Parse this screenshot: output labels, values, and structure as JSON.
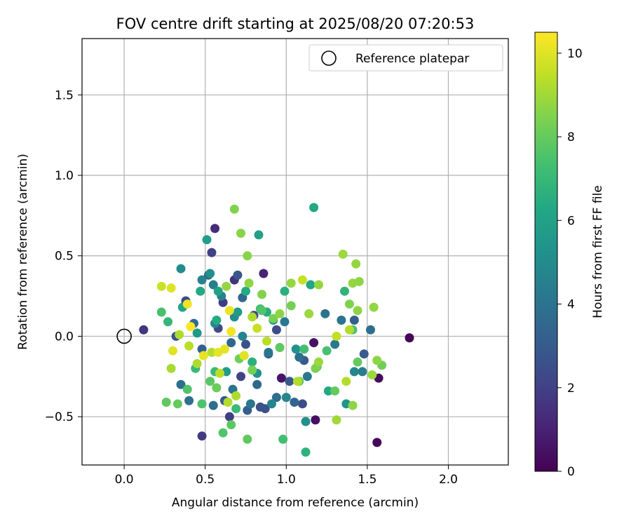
{
  "chart_data": {
    "type": "scatter",
    "title": "FOV centre drift starting at 2025/08/20 07:20:53",
    "xlabel": "Angular distance from reference (arcmin)",
    "ylabel": "Rotation from reference (arcmin)",
    "xlim": [
      -0.26,
      2.37
    ],
    "ylim": [
      -0.8,
      1.85
    ],
    "xticks": [
      0.0,
      0.5,
      1.0,
      1.5,
      2.0
    ],
    "xtick_labels": [
      "0.0",
      "0.5",
      "1.0",
      "1.5",
      "2.0"
    ],
    "yticks": [
      -0.5,
      0.0,
      0.5,
      1.0,
      1.5
    ],
    "ytick_labels": [
      "−0.5",
      "0.0",
      "0.5",
      "1.0",
      "1.5"
    ],
    "grid": true,
    "legend": {
      "placement": "top-right",
      "entries": [
        "Reference platepar"
      ]
    },
    "reference_point": {
      "name": "Reference platepar",
      "x": 0.0,
      "y": 0.0
    },
    "colorbar": {
      "label": "Hours from first FF file",
      "colormap": "viridis",
      "range": [
        0,
        10.5
      ],
      "ticks": [
        0,
        2,
        4,
        6,
        8,
        10
      ],
      "tick_labels": [
        "0",
        "2",
        "4",
        "6",
        "8",
        "10"
      ]
    },
    "series": [
      {
        "points": [
          [
            1.76,
            -0.01,
            0.1
          ],
          [
            1.56,
            -0.66,
            0.2
          ],
          [
            1.57,
            -0.26,
            0.3
          ],
          [
            1.18,
            -0.52,
            0.4
          ],
          [
            1.17,
            -0.04,
            0.5
          ],
          [
            0.97,
            -0.26,
            0.6
          ],
          [
            0.86,
            0.39,
            1.0
          ],
          [
            0.56,
            0.67,
            1.3
          ],
          [
            0.12,
            0.04,
            1.6
          ],
          [
            0.48,
            -0.62,
            1.8
          ],
          [
            0.54,
            0.52,
            2.0
          ],
          [
            0.68,
            0.35,
            1.5
          ],
          [
            0.8,
            0.13,
            2.2
          ],
          [
            0.61,
            0.21,
            1.8
          ],
          [
            0.94,
            0.04,
            2.4
          ],
          [
            0.72,
            -0.25,
            2.1
          ],
          [
            1.1,
            -0.42,
            2.5
          ],
          [
            0.65,
            -0.5,
            1.9
          ],
          [
            0.84,
            -0.44,
            2.6
          ],
          [
            0.38,
            0.22,
            2.3
          ],
          [
            0.32,
            0.0,
            2.6
          ],
          [
            0.58,
            0.05,
            2.2
          ],
          [
            0.75,
            -0.05,
            2.7
          ],
          [
            1.02,
            -0.28,
            2.9
          ],
          [
            1.48,
            -0.11,
            3.0
          ],
          [
            1.11,
            -0.15,
            3.0
          ],
          [
            0.7,
            0.38,
            2.8
          ],
          [
            0.76,
            -0.46,
            3.1
          ],
          [
            0.62,
            -0.4,
            2.9
          ],
          [
            0.89,
            -0.11,
            3.2
          ],
          [
            1.42,
            0.1,
            3.2
          ],
          [
            0.48,
            -0.08,
            3.2
          ],
          [
            0.87,
            -0.45,
            2.7
          ],
          [
            1.05,
            -0.41,
            3.4
          ],
          [
            0.52,
            0.38,
            3.4
          ],
          [
            0.73,
            0.24,
            3.5
          ],
          [
            0.43,
            0.08,
            3.6
          ],
          [
            0.66,
            -0.04,
            3.5
          ],
          [
            0.82,
            -0.3,
            3.5
          ],
          [
            0.94,
            -0.38,
            3.7
          ],
          [
            1.08,
            -0.13,
            3.8
          ],
          [
            1.24,
            0.14,
            3.9
          ],
          [
            1.34,
            0.1,
            4.0
          ],
          [
            1.52,
            0.04,
            3.8
          ],
          [
            0.35,
            -0.3,
            3.8
          ],
          [
            0.4,
            -0.4,
            3.9
          ],
          [
            0.55,
            -0.43,
            3.8
          ],
          [
            0.67,
            -0.33,
            4.0
          ],
          [
            0.78,
            -0.42,
            4.1
          ],
          [
            0.89,
            -0.1,
            4.1
          ],
          [
            0.99,
            0.09,
            4.3
          ],
          [
            1.13,
            -0.25,
            4.2
          ],
          [
            1.3,
            -0.05,
            4.2
          ],
          [
            1.47,
            -0.22,
            4.4
          ],
          [
            0.55,
            0.32,
            4.5
          ],
          [
            0.48,
            0.35,
            4.6
          ],
          [
            0.6,
            0.25,
            4.6
          ],
          [
            0.73,
            0.0,
            4.7
          ],
          [
            0.91,
            -0.42,
            4.7
          ],
          [
            1.42,
            -0.22,
            4.8
          ],
          [
            1.0,
            -0.38,
            4.8
          ],
          [
            0.56,
            0.08,
            4.9
          ],
          [
            0.68,
            0.12,
            5.1
          ],
          [
            1.12,
            -0.53,
            5.2
          ],
          [
            0.35,
            0.42,
            5.0
          ],
          [
            0.53,
            0.39,
            5.2
          ],
          [
            0.82,
            -0.23,
            5.3
          ],
          [
            1.06,
            -0.08,
            5.3
          ],
          [
            1.37,
            -0.42,
            5.4
          ],
          [
            0.92,
            0.1,
            5.5
          ],
          [
            0.7,
            0.15,
            5.6
          ],
          [
            0.45,
            0.02,
            5.6
          ],
          [
            0.63,
            -0.22,
            5.7
          ],
          [
            0.51,
            0.6,
            5.8
          ],
          [
            0.83,
            0.63,
            6.0
          ],
          [
            0.58,
            0.28,
            6.0
          ],
          [
            1.17,
            0.8,
            6.3
          ],
          [
            1.15,
            0.32,
            6.2
          ],
          [
            1.26,
            -0.34,
            6.3
          ],
          [
            0.36,
            0.18,
            6.2
          ],
          [
            0.47,
            0.28,
            6.3
          ],
          [
            0.57,
            0.1,
            6.4
          ],
          [
            0.75,
            0.28,
            6.4
          ],
          [
            0.88,
            0.15,
            6.5
          ],
          [
            0.79,
            -0.16,
            6.6
          ],
          [
            0.99,
            0.28,
            6.6
          ],
          [
            1.12,
            -0.72,
            6.7
          ],
          [
            1.36,
            0.28,
            6.8
          ],
          [
            0.27,
            0.09,
            6.9
          ],
          [
            0.44,
            -0.2,
            7.0
          ],
          [
            0.56,
            -0.22,
            7.1
          ],
          [
            0.69,
            -0.45,
            7.1
          ],
          [
            0.84,
            0.17,
            7.2
          ],
          [
            0.98,
            -0.64,
            7.3
          ],
          [
            1.11,
            -0.08,
            7.3
          ],
          [
            1.25,
            -0.09,
            7.4
          ],
          [
            1.41,
            0.04,
            7.5
          ],
          [
            0.23,
            0.15,
            7.4
          ],
          [
            0.39,
            -0.33,
            7.6
          ],
          [
            0.48,
            -0.42,
            7.5
          ],
          [
            0.53,
            -0.28,
            7.8
          ],
          [
            0.61,
            -0.6,
            7.6
          ],
          [
            0.66,
            -0.55,
            7.8
          ],
          [
            0.76,
            -0.64,
            7.9
          ],
          [
            0.85,
            0.16,
            7.6
          ],
          [
            0.96,
            -0.07,
            7.9
          ],
          [
            1.08,
            -0.28,
            7.8
          ],
          [
            1.19,
            -0.19,
            8.0
          ],
          [
            1.3,
            -0.34,
            8.0
          ],
          [
            1.44,
            -0.16,
            8.0
          ],
          [
            1.59,
            -0.18,
            8.2
          ],
          [
            0.26,
            -0.41,
            7.9
          ],
          [
            0.33,
            -0.42,
            8.0
          ],
          [
            0.57,
            -0.32,
            8.1
          ],
          [
            0.71,
            -0.14,
            8.2
          ],
          [
            0.79,
            -0.21,
            8.3
          ],
          [
            0.92,
            0.11,
            8.4
          ],
          [
            1.03,
            0.19,
            8.3
          ],
          [
            1.18,
            -0.2,
            8.4
          ],
          [
            1.39,
            0.2,
            8.5
          ],
          [
            0.68,
            0.79,
            8.5
          ],
          [
            0.72,
            0.64,
            8.6
          ],
          [
            0.76,
            0.5,
            8.6
          ],
          [
            0.77,
            0.33,
            8.7
          ],
          [
            0.63,
            0.31,
            8.8
          ],
          [
            0.85,
            0.26,
            8.5
          ],
          [
            0.96,
            0.14,
            8.7
          ],
          [
            1.03,
            0.33,
            8.8
          ],
          [
            1.14,
            0.14,
            8.9
          ],
          [
            1.2,
            0.32,
            8.8
          ],
          [
            1.35,
            0.51,
            8.9
          ],
          [
            1.43,
            0.45,
            8.8
          ],
          [
            1.45,
            0.34,
            8.7
          ],
          [
            1.41,
            0.33,
            8.8
          ],
          [
            1.44,
            0.16,
            8.7
          ],
          [
            1.54,
            0.18,
            8.8
          ],
          [
            1.56,
            -0.15,
            8.7
          ],
          [
            1.53,
            -0.24,
            8.9
          ],
          [
            1.41,
            -0.43,
            8.7
          ],
          [
            1.31,
            -0.52,
            9.0
          ],
          [
            1.2,
            -0.16,
            8.9
          ],
          [
            1.37,
            -0.28,
            9.3
          ],
          [
            0.29,
            -0.2,
            9.1
          ],
          [
            0.34,
            0.01,
            9.2
          ],
          [
            0.4,
            -0.06,
            9.4
          ],
          [
            0.45,
            -0.17,
            9.2
          ],
          [
            0.54,
            -0.1,
            9.3
          ],
          [
            0.59,
            -0.23,
            9.4
          ],
          [
            0.64,
            -0.41,
            9.3
          ],
          [
            0.69,
            -0.37,
            9.2
          ],
          [
            0.74,
            -0.12,
            9.4
          ],
          [
            0.79,
            0.12,
            9.2
          ],
          [
            0.88,
            -0.03,
            9.4
          ],
          [
            1.07,
            -0.28,
            9.3
          ],
          [
            1.31,
            0.0,
            9.5
          ],
          [
            1.39,
            0.04,
            9.3
          ],
          [
            0.23,
            0.31,
            9.7
          ],
          [
            0.29,
            0.3,
            10.0
          ],
          [
            0.3,
            -0.09,
            10.0
          ],
          [
            0.39,
            0.2,
            10.2
          ],
          [
            0.65,
            0.16,
            10.2
          ],
          [
            0.66,
            0.03,
            10.3
          ],
          [
            0.62,
            -0.08,
            10.1
          ],
          [
            0.58,
            -0.1,
            10.1
          ],
          [
            0.74,
            -0.12,
            10.0
          ],
          [
            0.41,
            0.06,
            10.4
          ],
          [
            0.49,
            -0.12,
            10.1
          ],
          [
            1.1,
            0.35,
            9.6
          ],
          [
            0.82,
            0.05,
            9.6
          ]
        ]
      }
    ]
  }
}
